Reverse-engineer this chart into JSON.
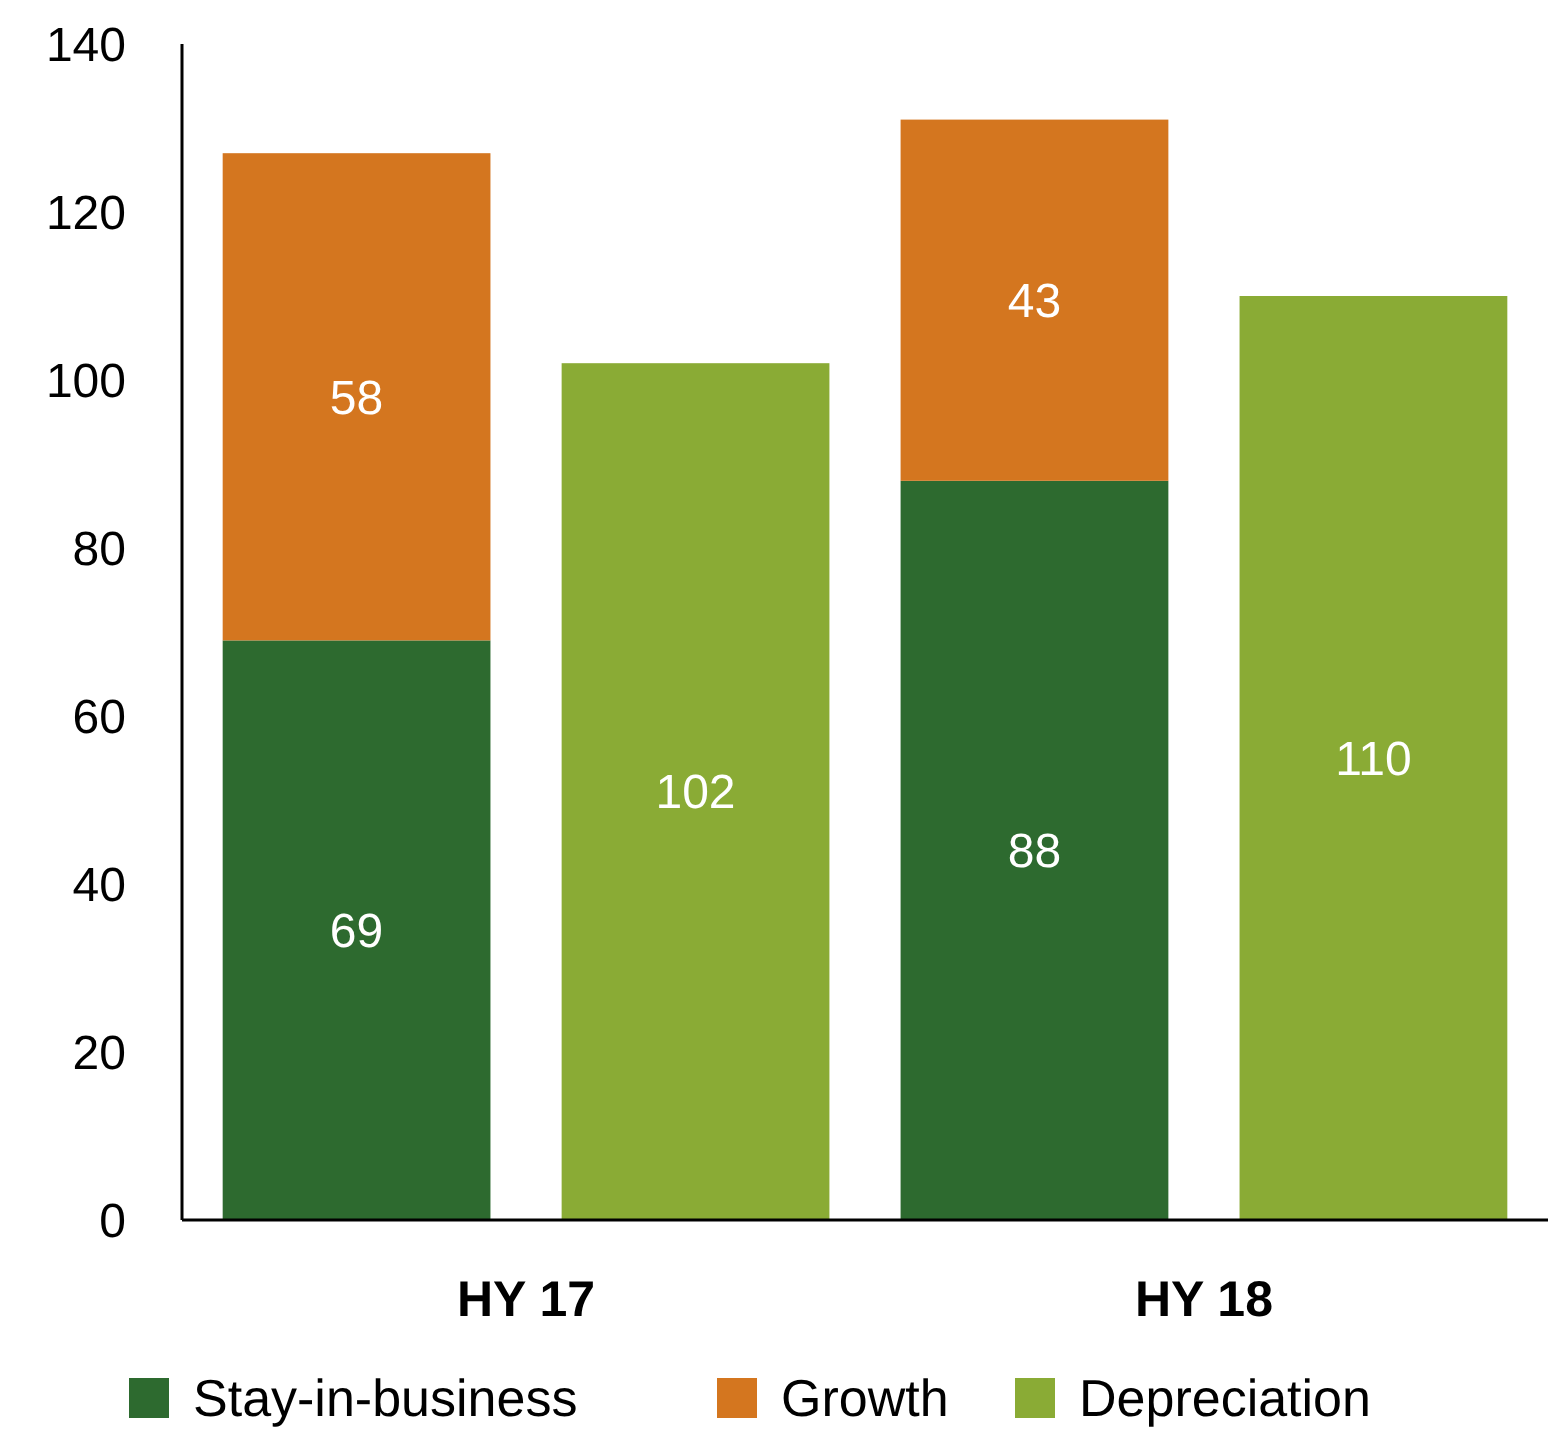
{
  "chart_data": {
    "type": "bar",
    "stacked": true,
    "categories": [
      "HY 17",
      null,
      "HY 18",
      null
    ],
    "series": [
      {
        "name": "Stay-in-business",
        "color": "#2d6a2f",
        "values": [
          69,
          null,
          88,
          null
        ]
      },
      {
        "name": "Growth",
        "color": "#d4761f",
        "values": [
          58,
          null,
          43,
          null
        ]
      },
      {
        "name": "Depreciation",
        "color": "#8aab35",
        "values": [
          null,
          102,
          null,
          110
        ]
      }
    ],
    "ylim": [
      0,
      140
    ],
    "yticks": [
      0,
      20,
      40,
      60,
      80,
      100,
      120,
      140
    ],
    "grid": false,
    "legend": "bottom",
    "data_labels": true
  }
}
